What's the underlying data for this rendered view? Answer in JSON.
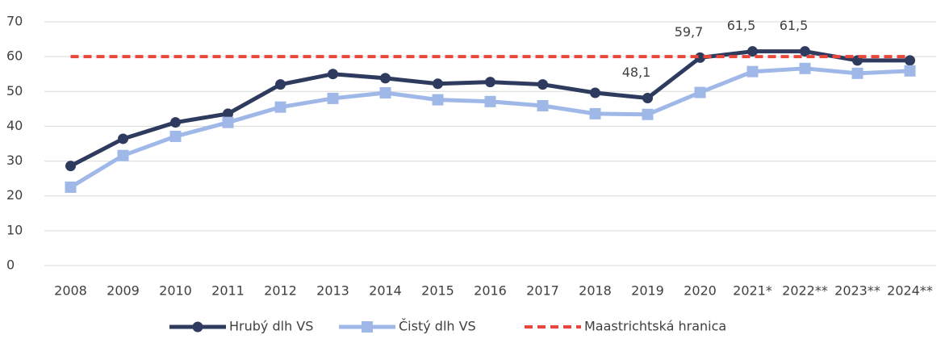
{
  "chart_data": {
    "type": "line",
    "categories": [
      "2008",
      "2009",
      "2010",
      "2011",
      "2012",
      "2013",
      "2014",
      "2015",
      "2016",
      "2017",
      "2018",
      "2019",
      "2020",
      "2021*",
      "2022**",
      "2023**",
      "2024**"
    ],
    "series": [
      {
        "name": "Hrubý dlh VS",
        "color": "#2e3b5e",
        "marker": "circle",
        "dash": false,
        "values": [
          28.6,
          36.4,
          41.1,
          43.6,
          52.0,
          55.0,
          53.8,
          52.2,
          52.7,
          52.0,
          49.6,
          48.1,
          59.7,
          61.5,
          61.5,
          58.9,
          58.9
        ],
        "value_labels": [
          null,
          null,
          null,
          null,
          null,
          null,
          null,
          null,
          null,
          null,
          null,
          "48,1",
          "59,7",
          "61,5",
          "61,5",
          null,
          null
        ]
      },
      {
        "name": "Čistý dlh VS",
        "color": "#9fb8e8",
        "marker": "square",
        "dash": false,
        "values": [
          22.5,
          31.6,
          37.1,
          41.1,
          45.5,
          48.0,
          49.6,
          47.6,
          47.1,
          45.9,
          43.6,
          43.4,
          49.7,
          55.7,
          56.6,
          55.2,
          55.9
        ]
      },
      {
        "name": "Maastrichtská hranica",
        "color": "#e8473a",
        "marker": "none",
        "dash": true,
        "values": [
          60,
          60,
          60,
          60,
          60,
          60,
          60,
          60,
          60,
          60,
          60,
          60,
          60,
          60,
          60,
          60,
          60
        ]
      }
    ],
    "ylim": [
      0,
      70
    ],
    "yticks": [
      0,
      10,
      20,
      30,
      40,
      50,
      60,
      70
    ],
    "grid": true,
    "legend": "bottom"
  }
}
